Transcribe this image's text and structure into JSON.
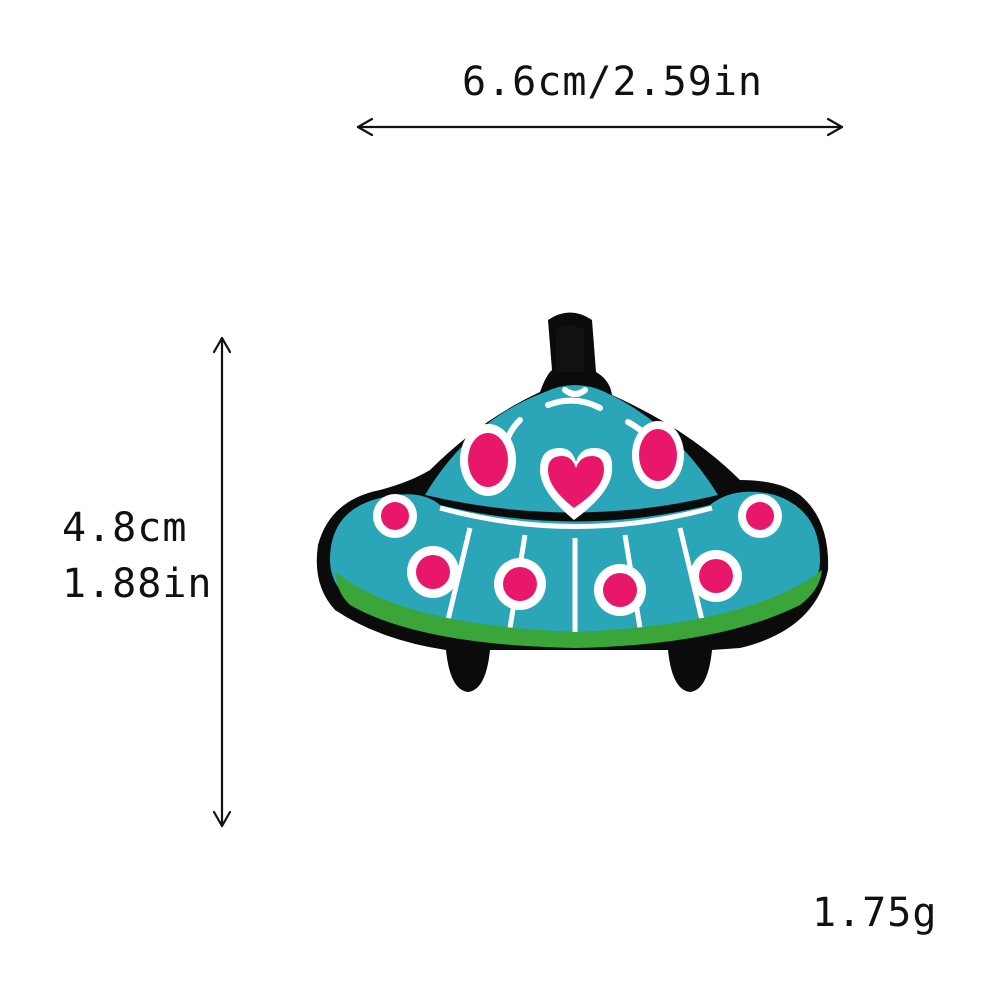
{
  "dimensions": {
    "width_label": "6.6cm/2.59in",
    "height_cm": "4.8cm",
    "height_in": "1.88in",
    "weight": "1.75g"
  },
  "colors": {
    "outline": "#0b0b0b",
    "teal": "#2aa6b8",
    "pink": "#e8176a",
    "white": "#ffffff",
    "green": "#3aa63a",
    "arrow": "#111111"
  }
}
